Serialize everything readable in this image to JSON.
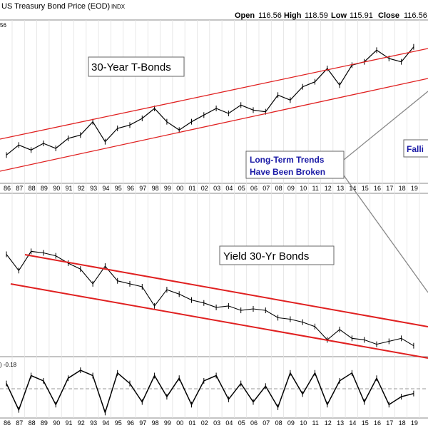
{
  "header": {
    "title": "US Treasury Bond Price (EOD)",
    "exchange": "INDX",
    "open_label": "Open",
    "open": "116.56",
    "high_label": "High",
    "high": "118.59",
    "low_label": "Low",
    "low": "115.91",
    "close_label": "Close",
    "close": "116.56",
    "side_value": "56"
  },
  "annotations": {
    "tbonds": "30-Year T-Bonds",
    "trends_line1": "Long-Term Trends",
    "trends_line2": "Have Been Broken",
    "falling": "Falli",
    "yield": "Yield 30-Yr Bonds",
    "osc_value": ") -0.18"
  },
  "colors": {
    "trendline": "#e02020",
    "annotation_blue": "#1a1aa6",
    "price": "#000000",
    "ma_blue": "#3355cc",
    "ma_red": "#cc2222",
    "grid": "#d8d8d8"
  },
  "chart_data": [
    {
      "type": "line",
      "title": "30-Year T-Bonds",
      "x": [
        "86",
        "87",
        "88",
        "89",
        "90",
        "91",
        "92",
        "93",
        "94",
        "95",
        "96",
        "97",
        "98",
        "99",
        "00",
        "01",
        "02",
        "03",
        "04",
        "05",
        "06",
        "07",
        "08",
        "09",
        "10",
        "11",
        "12",
        "13",
        "14",
        "15",
        "16",
        "17",
        "18",
        "19"
      ],
      "series": [
        {
          "values": [
            84,
            90,
            87,
            91,
            88,
            94,
            96,
            104,
            92,
            100,
            102,
            106,
            112,
            104,
            99,
            104,
            108,
            112,
            109,
            114,
            111,
            110,
            120,
            117,
            125,
            128,
            136,
            126,
            138,
            140,
            147,
            142,
            140,
            149
          ]
        }
      ],
      "trendlines": "rising channel"
    },
    {
      "type": "line",
      "title": "Yield 30-Yr Bonds",
      "x": [
        "86",
        "87",
        "88",
        "89",
        "90",
        "91",
        "92",
        "93",
        "94",
        "95",
        "96",
        "97",
        "98",
        "99",
        "00",
        "01",
        "02",
        "03",
        "04",
        "05",
        "06",
        "07",
        "08",
        "09",
        "10",
        "11",
        "12",
        "13",
        "14",
        "15",
        "16",
        "17",
        "18",
        "19"
      ],
      "series": [
        {
          "values": [
            8.7,
            7.6,
            8.9,
            8.8,
            8.6,
            8.1,
            7.7,
            6.7,
            7.9,
            6.9,
            6.7,
            6.5,
            5.2,
            6.3,
            6.0,
            5.6,
            5.4,
            5.1,
            5.2,
            4.9,
            5.0,
            4.9,
            4.4,
            4.3,
            4.1,
            3.8,
            2.9,
            3.6,
            3.0,
            2.9,
            2.6,
            2.8,
            3.0,
            2.5
          ]
        }
      ],
      "trendlines": "falling channel"
    },
    {
      "type": "line",
      "title": "",
      "x": [
        "86",
        "87",
        "88",
        "89",
        "90",
        "91",
        "92",
        "93",
        "94",
        "95",
        "96",
        "97",
        "98",
        "99",
        "00",
        "01",
        "02",
        "03",
        "04",
        "05",
        "06",
        "07",
        "08",
        "09",
        "10",
        "11",
        "12",
        "13",
        "14",
        "15",
        "16",
        "17",
        "18",
        "19"
      ],
      "series": [
        {
          "values": [
            0.2,
            -0.8,
            0.5,
            0.3,
            -0.6,
            0.4,
            0.7,
            0.5,
            -0.9,
            0.6,
            0.2,
            -0.5,
            0.5,
            -0.3,
            0.4,
            -0.6,
            0.3,
            0.5,
            -0.4,
            0.2,
            -0.5,
            0.1,
            -0.7,
            0.6,
            -0.2,
            0.6,
            -0.6,
            0.3,
            0.6,
            -0.5,
            0.4,
            -0.6,
            -0.3,
            -0.18
          ]
        }
      ]
    }
  ]
}
